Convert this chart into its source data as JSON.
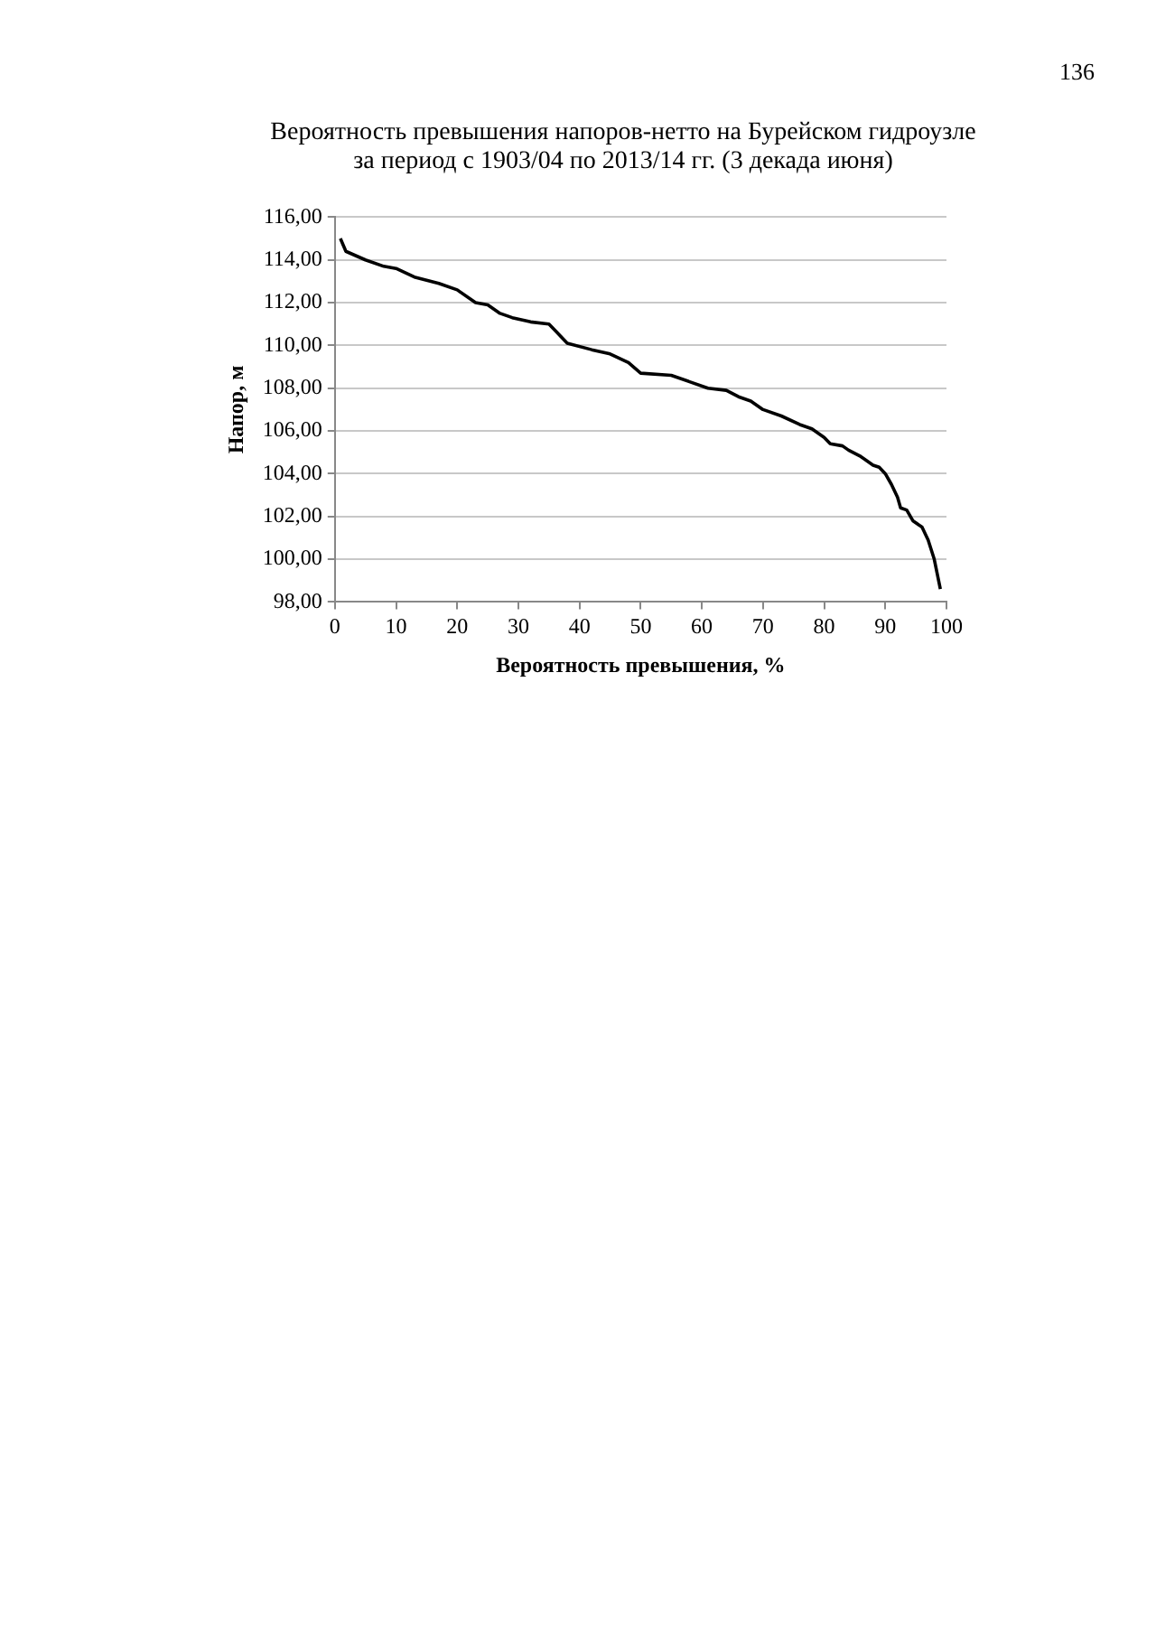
{
  "chart_data": {
    "type": "line",
    "title": "Вероятность превышения напоров-нетто на Бурейском гидроузле\nза период с 1903/04 по 2013/14 гг. (3 декада июня)",
    "xlabel": "Вероятность превышения, %",
    "ylabel": "Напор, м",
    "annotations": [
      "136"
    ],
    "x": [
      0.9,
      1.8,
      5,
      8,
      10,
      13,
      17,
      20,
      23,
      25,
      27,
      29,
      32,
      35,
      36,
      38,
      42,
      45,
      48,
      50,
      55,
      58,
      61,
      64,
      66,
      68,
      70,
      73,
      76,
      78,
      80,
      81,
      83,
      84,
      86,
      88,
      89,
      90,
      91,
      92,
      92.5,
      93.5,
      94.5,
      96,
      97,
      98,
      99
    ],
    "series": [
      {
        "color": "#000000",
        "values": [
          115.0,
          114.4,
          114.0,
          113.7,
          113.6,
          113.2,
          112.9,
          112.6,
          112.0,
          111.9,
          111.5,
          111.3,
          111.1,
          111.0,
          110.7,
          110.1,
          109.8,
          109.6,
          109.2,
          108.7,
          108.6,
          108.3,
          108.0,
          107.9,
          107.6,
          107.4,
          107.0,
          106.7,
          106.3,
          106.1,
          105.7,
          105.4,
          105.3,
          105.1,
          104.8,
          104.4,
          104.3,
          104.0,
          103.5,
          102.9,
          102.4,
          102.3,
          101.8,
          101.5,
          100.9,
          100.0,
          98.6
        ]
      }
    ],
    "xlim": [
      0,
      100
    ],
    "xticks": [
      0,
      10,
      20,
      30,
      40,
      50,
      60,
      70,
      80,
      90,
      100
    ],
    "ylim": [
      98,
      116
    ],
    "yticks": [
      {
        "value": 98,
        "label": "98,00"
      },
      {
        "value": 100,
        "label": "100,00"
      },
      {
        "value": 102,
        "label": "102,00"
      },
      {
        "value": 104,
        "label": "104,00"
      },
      {
        "value": 106,
        "label": "106,00"
      },
      {
        "value": 108,
        "label": "108,00"
      },
      {
        "value": 110,
        "label": "110,00"
      },
      {
        "value": 112,
        "label": "112,00"
      },
      {
        "value": 114,
        "label": "114,00"
      },
      {
        "value": 116,
        "label": "116,00"
      }
    ],
    "grid": "y",
    "legend": false,
    "marker": "none",
    "line_style": "solid"
  }
}
